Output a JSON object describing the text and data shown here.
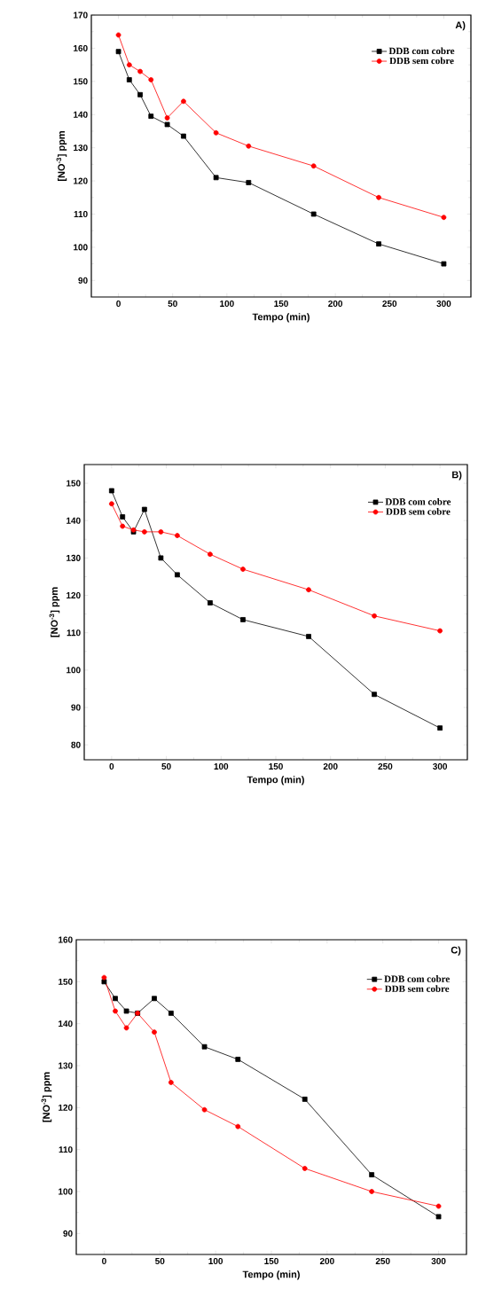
{
  "chart_data": [
    {
      "type": "line",
      "xlabel": "Tempo (min)",
      "ylabel": "[NO$^{-3}$] ppm",
      "annotations": [
        "A)"
      ],
      "x": [
        0,
        10,
        20,
        30,
        45,
        60,
        90,
        120,
        180,
        240,
        300
      ],
      "series": [
        {
          "name": "DDB com cobre",
          "color": "#000000",
          "marker": "square",
          "values": [
            159,
            150.5,
            146,
            139.5,
            137,
            133.5,
            121,
            119.5,
            110,
            101,
            95
          ]
        },
        {
          "name": "DDB sem cobre",
          "color": "#ff0000",
          "marker": "circle",
          "values": [
            164,
            155,
            153,
            150.5,
            139,
            144,
            134.5,
            130.5,
            124.5,
            115,
            109
          ]
        }
      ],
      "xlim": [
        -25,
        325
      ],
      "ylim": [
        85,
        170
      ],
      "xticks": [
        0,
        50,
        100,
        150,
        200,
        250,
        300
      ],
      "yticks": [
        90,
        100,
        110,
        120,
        130,
        140,
        150,
        160,
        170
      ],
      "legend": "top right",
      "grid": false,
      "line_style": "solid"
    },
    {
      "type": "line",
      "xlabel": "Tempo (min)",
      "ylabel": "[NO$^{-3}$] ppm",
      "annotations": [
        "B)"
      ],
      "x": [
        0,
        10,
        20,
        30,
        45,
        60,
        90,
        120,
        180,
        240,
        300
      ],
      "series": [
        {
          "name": "DDB com cobre",
          "color": "#000000",
          "marker": "square",
          "values": [
            148,
            141,
            137,
            143,
            130,
            125.5,
            118,
            113.5,
            109,
            93.5,
            84.5
          ]
        },
        {
          "name": "DDB sem cobre",
          "color": "#ff0000",
          "marker": "circle",
          "values": [
            144.5,
            138.5,
            137.5,
            137,
            137,
            136,
            131,
            127,
            121.5,
            114.5,
            110.5
          ]
        }
      ],
      "xlim": [
        -25,
        325
      ],
      "ylim": [
        76,
        155
      ],
      "xticks": [
        0,
        50,
        100,
        150,
        200,
        250,
        300
      ],
      "yticks": [
        80,
        90,
        100,
        110,
        120,
        130,
        140,
        150
      ],
      "legend": "top right",
      "grid": false,
      "line_style": "solid"
    },
    {
      "type": "line",
      "xlabel": "Tempo (min)",
      "ylabel": "[NO$^{-3}$] ppm",
      "annotations": [
        "C)"
      ],
      "x": [
        0,
        10,
        20,
        30,
        45,
        60,
        90,
        120,
        180,
        240,
        300
      ],
      "series": [
        {
          "name": "DDB com cobre",
          "color": "#000000",
          "marker": "square",
          "values": [
            150,
            146,
            143,
            142.5,
            146,
            142.5,
            134.5,
            131.5,
            122,
            104,
            94
          ]
        },
        {
          "name": "DDB sem cobre",
          "color": "#ff0000",
          "marker": "circle",
          "values": [
            151,
            143,
            139,
            142.5,
            138,
            126,
            119.5,
            115.5,
            105.5,
            100,
            96.5
          ]
        }
      ],
      "xlim": [
        -25,
        325
      ],
      "ylim": [
        85,
        160
      ],
      "xticks": [
        0,
        50,
        100,
        150,
        200,
        250,
        300
      ],
      "yticks": [
        90,
        100,
        110,
        120,
        130,
        140,
        150,
        160
      ],
      "legend": "top right",
      "grid": false,
      "line_style": "solid"
    }
  ]
}
